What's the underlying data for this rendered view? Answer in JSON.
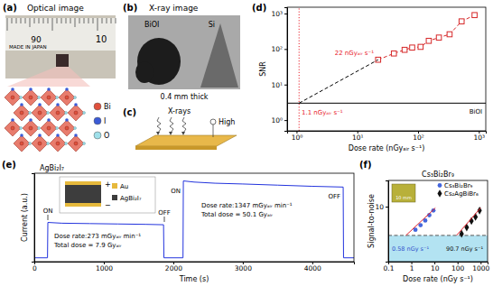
{
  "panels": {
    "a": {
      "label": "(a)",
      "title": "Optical image",
      "ruler": [
        "MADE IN JAPAN",
        "90",
        "10"
      ],
      "atoms": [
        {
          "name": "Bi",
          "color": "#e0503c"
        },
        {
          "name": "I",
          "color": "#3b5bd6"
        },
        {
          "name": "O",
          "color": "#9fe0ea"
        }
      ]
    },
    "b": {
      "label": "(b)",
      "title": "X-ray image",
      "samples": [
        "BiOI",
        "Si"
      ],
      "caption": "0.4 mm thick"
    },
    "c": {
      "label": "(c)",
      "beam": "X-rays",
      "bias": "High"
    }
  },
  "chart_data": [
    {
      "panel": "(d)",
      "type": "line",
      "x_label": "Dose rate (nGyₐᵢᵣ s⁻¹)",
      "y_label": "SNR",
      "log": true,
      "xlim": [
        0.7,
        1300
      ],
      "ylim": [
        0.5,
        1500
      ],
      "xticks": [
        {
          "value": 1,
          "label": "10⁰"
        },
        {
          "value": 10,
          "label": "10¹"
        },
        {
          "value": 100,
          "label": "10²"
        },
        {
          "value": 1000,
          "label": "10³"
        }
      ],
      "yticks": [
        {
          "value": 1,
          "label": "10⁰"
        },
        {
          "value": 10,
          "label": "10¹"
        },
        {
          "value": 100,
          "label": "10²"
        },
        {
          "value": 1000,
          "label": "10³"
        }
      ],
      "series": [
        {
          "x": [
            22,
            40,
            60,
            80,
            110,
            150,
            220,
            330,
            520,
            850
          ],
          "values": [
            50,
            75,
            95,
            110,
            115,
            170,
            210,
            260,
            600,
            900
          ],
          "color": "#d62728",
          "marker": "square",
          "line_style": "dashed"
        },
        {
          "x": [
            1.1,
            22
          ],
          "values": [
            3,
            50
          ],
          "color": "#000000",
          "line_style": "dashed"
        },
        {
          "x": [
            0.7,
            1300
          ],
          "values": [
            3,
            3
          ],
          "color": "#000000",
          "line_style": "solid"
        },
        {
          "x": [
            1.1,
            1.1
          ],
          "values": [
            0.5,
            1500
          ],
          "color": "#e8202a",
          "line_style": "dotted"
        }
      ],
      "annotations": [
        "1.1 nGyₐᵢᵣ s⁻¹",
        "22 nGyₐᵢᵣ s⁻¹",
        "BiOI"
      ]
    },
    {
      "panel": "(e)",
      "type": "line",
      "title": "AgBi₂I₇",
      "x_label": "Time (s)",
      "y_label": "Current (a.u.)",
      "xlim": [
        0,
        4600
      ],
      "ylim": [
        -0.05,
        1.1
      ],
      "xticks": [
        0,
        1000,
        2000,
        3000,
        4000
      ],
      "tick_labels": "x",
      "series": [
        {
          "x": [
            0,
            190,
            195,
            400,
            800,
            1200,
            1600,
            1860,
            1865,
            2140,
            2145,
            2300,
            2600,
            3000,
            3500,
            4000,
            4445,
            4450,
            4600
          ],
          "values": [
            0,
            0,
            0.46,
            0.45,
            0.445,
            0.44,
            0.435,
            0.43,
            0,
            0,
            1.0,
            0.985,
            0.97,
            0.96,
            0.945,
            0.93,
            0.92,
            0,
            0
          ],
          "color": "#2233dd",
          "line_style": "solid"
        }
      ],
      "annotations": [
        "ON",
        "OFF",
        "ON",
        "OFF",
        "Dose rate:273 mGyₐᵢᵣ min⁻¹",
        "Total dose = 7.9 Gyₐᵢᵣ",
        "Dose rate:1347 mGyₐᵢᵣ min⁻¹",
        "Total dose = 50.1 Gyₐᵢᵣ"
      ],
      "inset_labels": [
        "Au",
        "AgBi₂I₇",
        "+",
        "−"
      ]
    },
    {
      "panel": "(f)",
      "type": "scatter",
      "title": "Cs₃Bi₂Br₉",
      "x_label": "Dose rate (nGy s⁻¹)",
      "y_label": "Signal-to-noise",
      "log": true,
      "xlim": [
        0.1,
        2000
      ],
      "ylim": [
        1,
        30
      ],
      "xticks": [
        0.1,
        1,
        10,
        100,
        1000
      ],
      "yticks": [
        10
      ],
      "legend": "top-right",
      "series": [
        {
          "type": "area",
          "x": [
            0.1,
            2000
          ],
          "values": [
            3,
            3
          ],
          "color": "#b3e3f2"
        },
        {
          "type": "line",
          "x": [
            0.1,
            2000
          ],
          "values": [
            3,
            3
          ],
          "color": "#555555",
          "line_style": "dashed"
        },
        {
          "name": "Cs₃Bi₂Br₉",
          "x": [
            1.5,
            2.5,
            4,
            6,
            9
          ],
          "values": [
            3.8,
            4.6,
            5.6,
            7,
            8.5
          ],
          "color": "#4466dd",
          "marker": "circle"
        },
        {
          "name": "Cs₂AgBiBr₆",
          "x": [
            150,
            250,
            400,
            600,
            900
          ],
          "values": [
            3.2,
            4.2,
            5.5,
            6.5,
            8.5
          ],
          "color": "#111111",
          "marker": "diamond"
        },
        {
          "type": "line",
          "x": [
            0.58,
            11
          ],
          "values": [
            3,
            9.5
          ],
          "color": "#e0202a",
          "line_style": "solid"
        },
        {
          "type": "line",
          "x": [
            90.7,
            1000
          ],
          "values": [
            3,
            9.5
          ],
          "color": "#e0202a",
          "line_style": "solid"
        }
      ],
      "annotations": [
        "0.58 nGy s⁻¹",
        "90.7 nGy s⁻¹"
      ],
      "inset_caption": "10 mm"
    }
  ]
}
